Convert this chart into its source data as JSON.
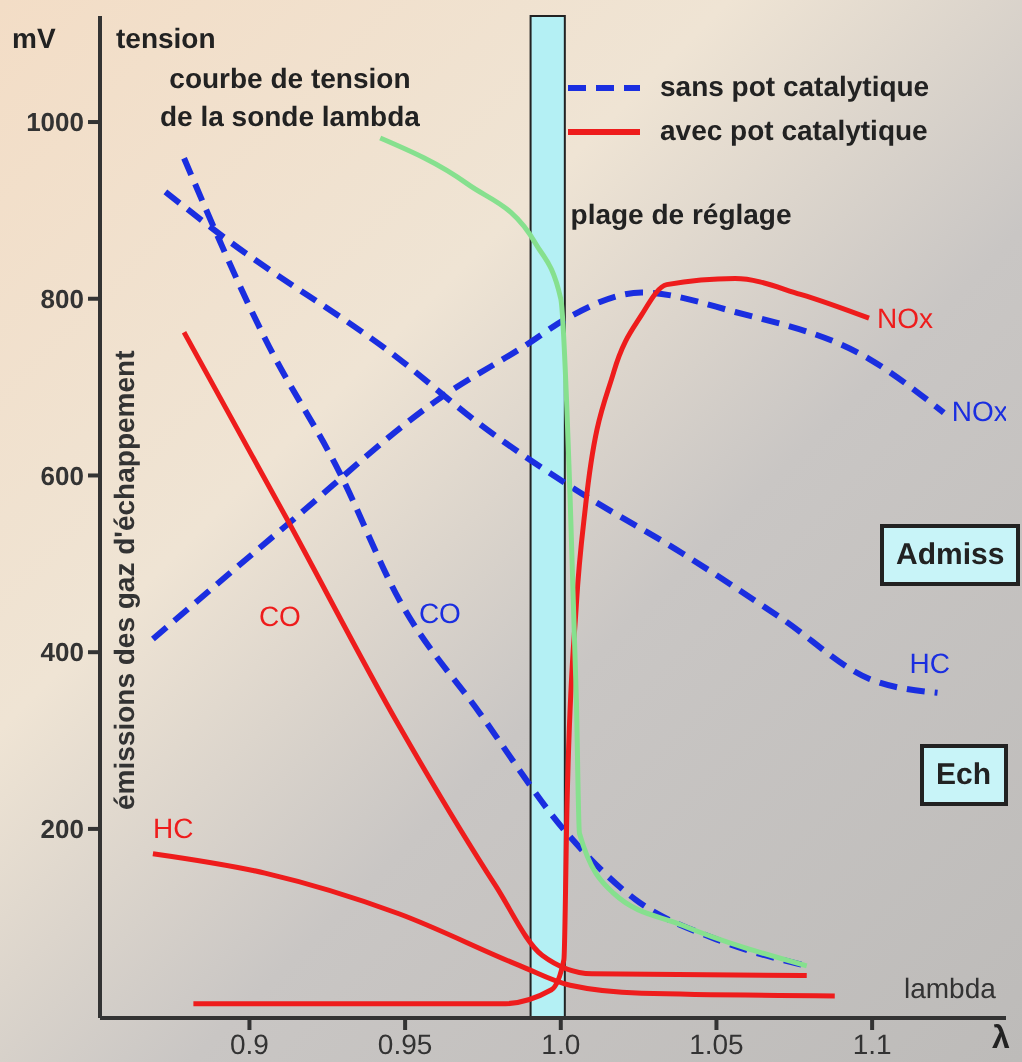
{
  "chart_data": {
    "type": "line",
    "ylabel": "émissions des gaz d'échappement",
    "xlabel": "lambda",
    "xlim": [
      0.852,
      1.143
    ],
    "xticks": [
      {
        "value": 0.9,
        "label": "0.9"
      },
      {
        "value": 0.95,
        "label": "0.95"
      },
      {
        "value": 1,
        "label": "1.0"
      },
      {
        "value": 1.05,
        "label": "1.05"
      },
      {
        "value": 1.1,
        "label": "1.1"
      }
    ],
    "ylim": [
      -14,
      1120
    ],
    "yticks": [
      200,
      400,
      600,
      800,
      1000
    ],
    "marker": "none",
    "series": [
      {
        "name": "CO",
        "color": "#1a2ee0",
        "line_style": "dashed",
        "x": [
          0.879,
          0.905,
          0.929,
          0.948,
          0.974,
          1.002,
          1.024,
          1.05,
          1.079
        ],
        "values": [
          959,
          755,
          603,
          460,
          331,
          195,
          120,
          75,
          45
        ]
      },
      {
        "name": "HC",
        "color": "#1a2ee0",
        "line_style": "dashed",
        "x": [
          0.873,
          0.892,
          0.948,
          0.974,
          1.002,
          1.039,
          1.071,
          1.099,
          1.121
        ],
        "values": [
          921,
          869,
          732,
          658,
          590,
          512,
          438,
          370,
          354
        ]
      },
      {
        "name": "NOx",
        "color": "#1a2ee0",
        "line_style": "dashed",
        "x": [
          0.869,
          0.912,
          0.961,
          0.989,
          1.002,
          1.026,
          1.056,
          1.099,
          1.123
        ],
        "values": [
          415,
          544,
          687,
          748,
          778,
          807,
          785,
          732,
          671
        ]
      },
      {
        "name": "CO",
        "color": "#ee1c1c",
        "line_style": "solid",
        "x": [
          0.879,
          0.912,
          0.948,
          0.979,
          0.994,
          1.01,
          1.079
        ],
        "values": [
          762,
          551,
          317,
          136,
          57,
          36,
          34
        ]
      },
      {
        "name": "HC",
        "color": "#ee1c1c",
        "line_style": "solid",
        "x": [
          0.869,
          0.905,
          0.948,
          0.987,
          1.003,
          1.026,
          1.088
        ],
        "values": [
          172,
          150,
          104,
          45,
          23,
          14,
          11
        ]
      },
      {
        "name": "NOx",
        "color": "#ee1c1c",
        "line_style": "solid",
        "x": [
          0.882,
          0.981,
          0.997,
          1.001,
          1.002,
          1.005,
          1.008,
          1.017,
          1.026,
          1.034,
          1.056,
          1.077,
          1.099
        ],
        "values": [
          2,
          2,
          18,
          52,
          227,
          454,
          567,
          717,
          782,
          816,
          823,
          805,
          778
        ]
      },
      {
        "color": "#86e08e",
        "line_style": "solid",
        "x": [
          0.942,
          0.97,
          0.992,
          1,
          1.003,
          1.005,
          1.006,
          1.017,
          1.039,
          1.079
        ],
        "values": [
          982,
          930,
          862,
          800,
          574,
          347,
          195,
          127,
          91,
          45
        ]
      }
    ],
    "bands": [
      {
        "axis": "x",
        "from": 0.9903,
        "to": 1.0013,
        "label": "plage de réglage",
        "color": "#b4f0f4"
      }
    ],
    "annotations": [
      "mV",
      "tension",
      "courbe de tension\nde la sonde lambda",
      "sans pot catalytique",
      "avec pot catalytique",
      "Admiss",
      "Ech",
      "λ"
    ]
  }
}
